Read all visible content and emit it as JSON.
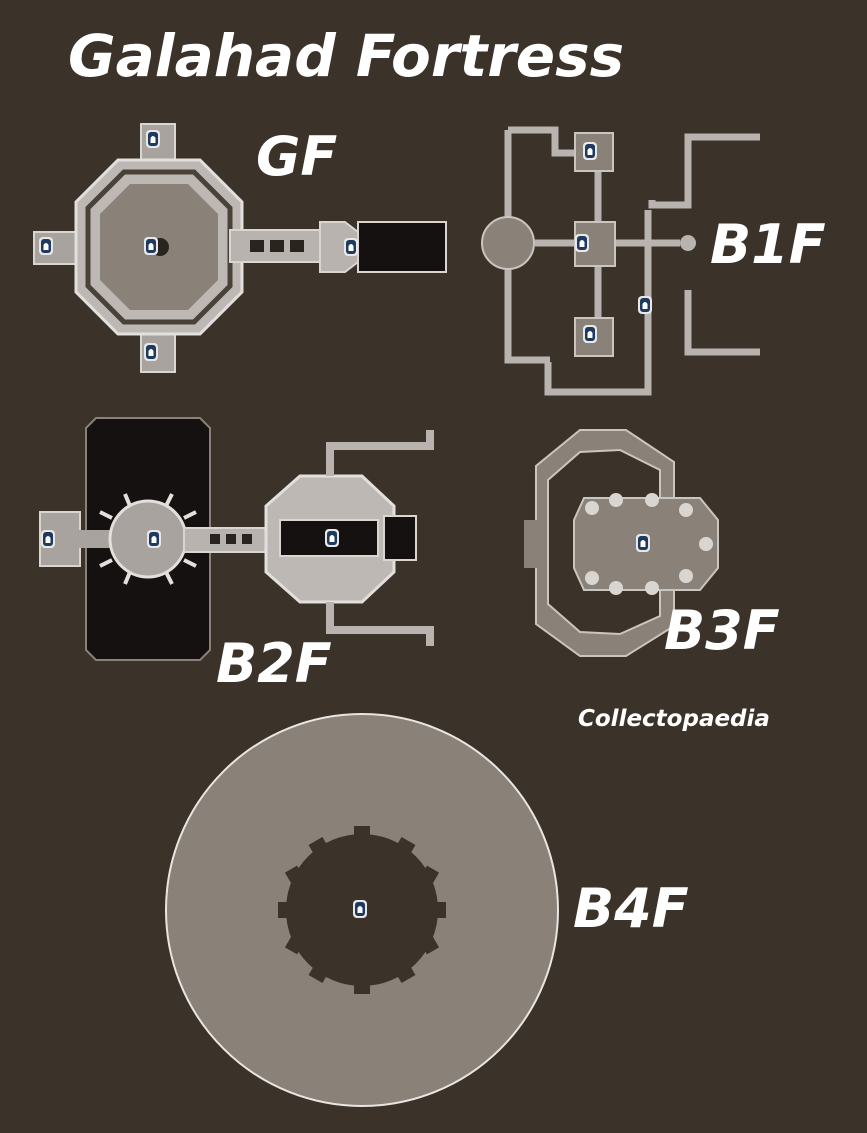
{
  "title": "Galahad Fortress",
  "floors": {
    "gf": "GF",
    "b1f": "B1F",
    "b2f": "B2F",
    "b3f": "B3F",
    "b4f": "B4F"
  },
  "credit": "Collectopaedia",
  "icon": "save-point-marker-icon",
  "colors": {
    "background": "#3b3229",
    "floor": "#8a8178",
    "wall": "#c9c5c0",
    "dark_area": "#141110",
    "marker": "#1f3a5f"
  }
}
